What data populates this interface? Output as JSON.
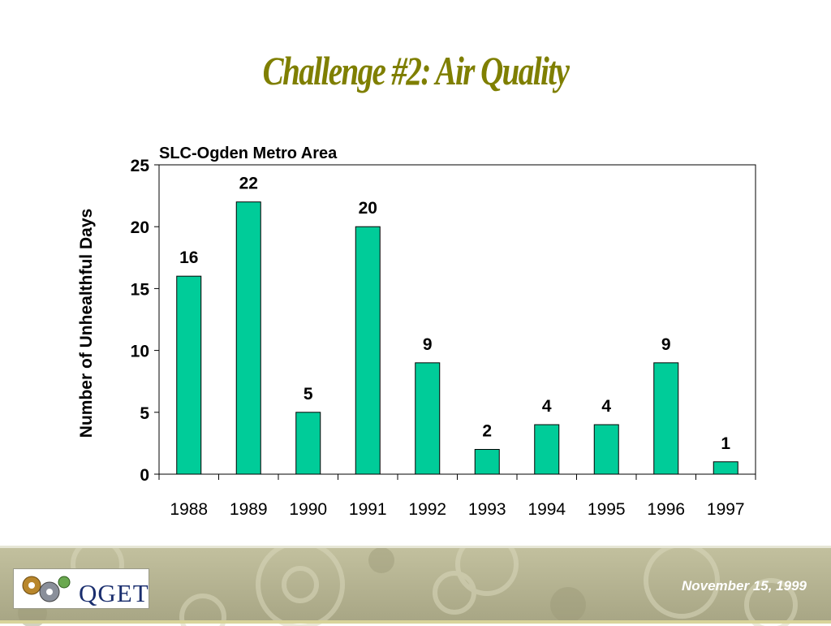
{
  "slide": {
    "title": "Challenge #2:  Air Quality",
    "date": "November 15, 1999",
    "logo_text": "QGET"
  },
  "colors": {
    "title": "#7f7f00",
    "bar_fill": "#00cc99",
    "bar_stroke": "#000000",
    "footer": "#b3b191"
  },
  "chart_data": {
    "type": "bar",
    "title": "SLC-Ogden Metro Area",
    "xlabel": "",
    "ylabel": "Number of Unhealthful Days",
    "categories": [
      "1988",
      "1989",
      "1990",
      "1991",
      "1992",
      "1993",
      "1994",
      "1995",
      "1996",
      "1997"
    ],
    "values": [
      16,
      22,
      5,
      20,
      9,
      2,
      4,
      4,
      9,
      1
    ],
    "ylim": [
      0,
      25
    ],
    "yticks": [
      0,
      5,
      10,
      15,
      20,
      25
    ],
    "data_labels": true,
    "grid": false,
    "legend": "none"
  }
}
